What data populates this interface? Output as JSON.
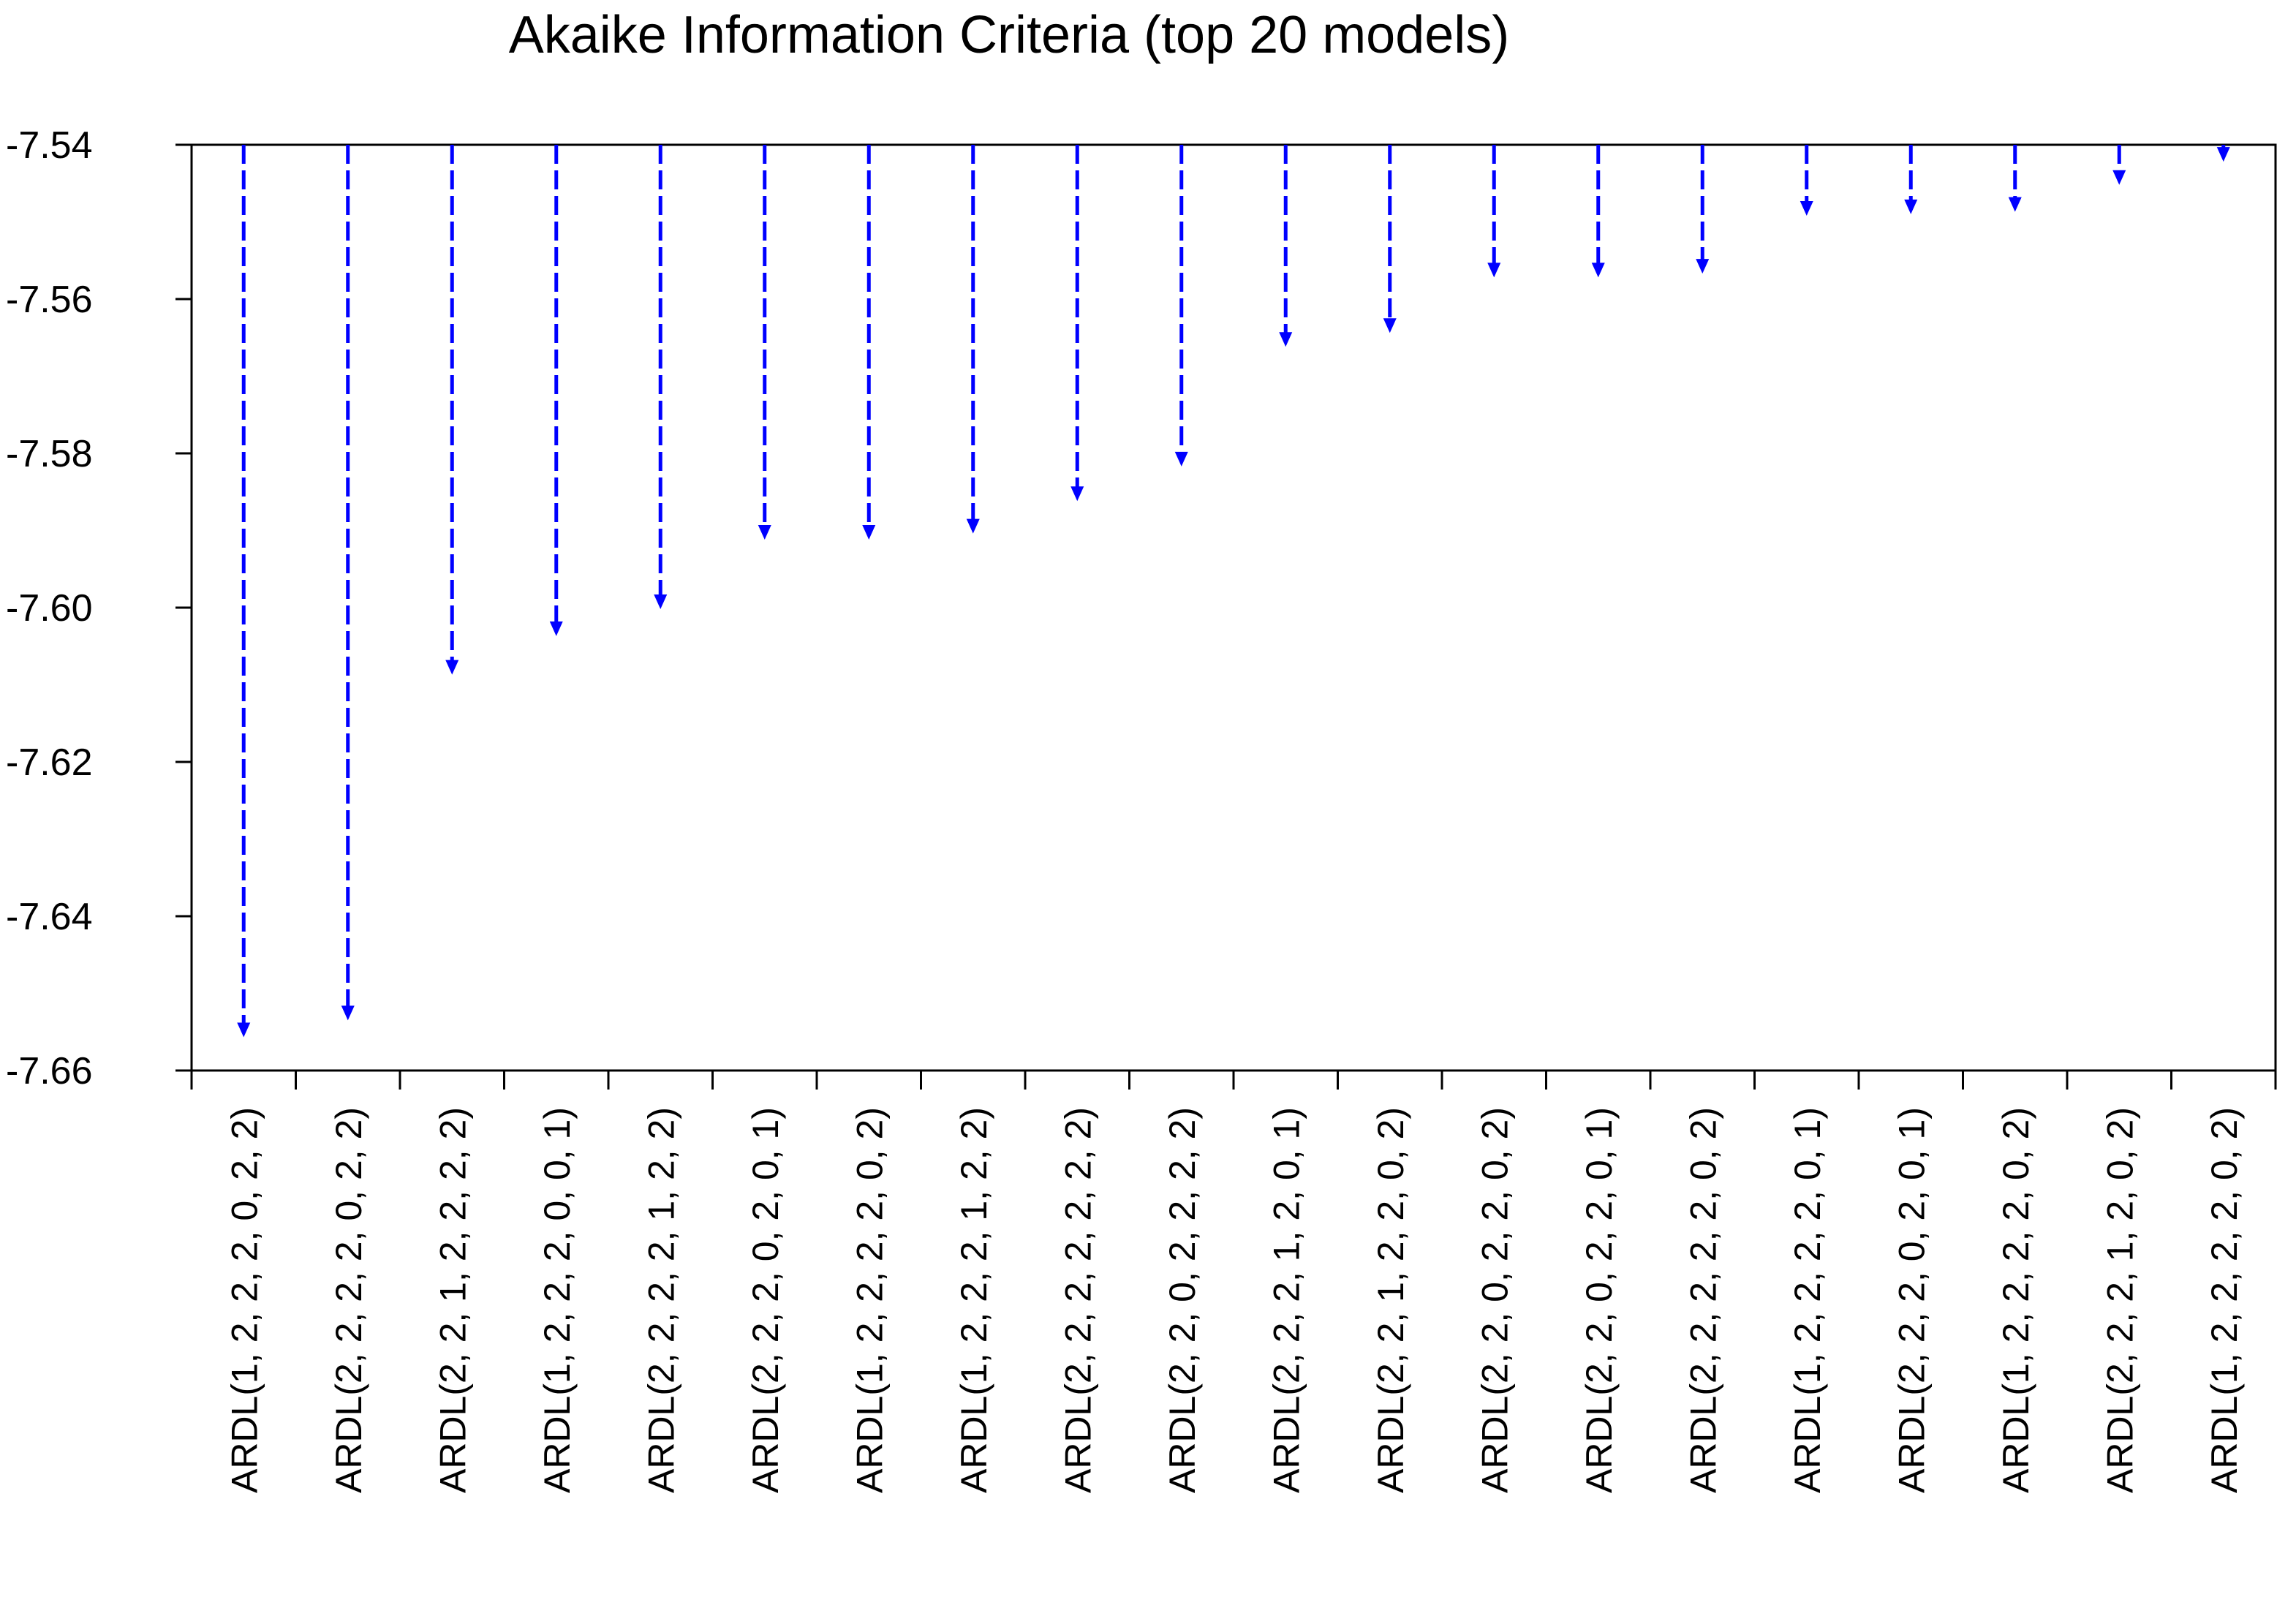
{
  "chart_data": {
    "type": "dropline",
    "title": "Akaike Information Criteria (top 20 models)",
    "ylim": [
      -7.66,
      -7.54
    ],
    "yticks": [
      "-7.54",
      "-7.56",
      "-7.58",
      "-7.60",
      "-7.62",
      "-7.64",
      "-7.66"
    ],
    "grid": false,
    "series_color": "#0000ff",
    "categories": [
      "ARDL(1, 2, 2, 2, 0, 2, 2)",
      "ARDL(2, 2, 2, 2, 0, 2, 2)",
      "ARDL(2, 2, 1, 2, 2, 2, 2)",
      "ARDL(1, 2, 2, 2, 0, 0, 1)",
      "ARDL(2, 2, 2, 2, 1, 2, 2)",
      "ARDL(2, 2, 2, 0, 2, 0, 1)",
      "ARDL(1, 2, 2, 2, 2, 0, 2)",
      "ARDL(1, 2, 2, 2, 1, 2, 2)",
      "ARDL(2, 2, 2, 2, 2, 2, 2)",
      "ARDL(2, 2, 0, 2, 2, 2, 2)",
      "ARDL(2, 2, 2, 1, 2, 0, 1)",
      "ARDL(2, 2, 1, 2, 2, 0, 2)",
      "ARDL(2, 2, 0, 2, 2, 0, 2)",
      "ARDL(2, 2, 0, 2, 2, 0, 1)",
      "ARDL(2, 2, 2, 2, 2, 0, 2)",
      "ARDL(1, 2, 2, 2, 2, 0, 1)",
      "ARDL(2, 2, 2, 0, 2, 0, 1)",
      "ARDL(1, 2, 2, 2, 2, 0, 2)",
      "ARDL(2, 2, 2, 1, 2, 0, 2)",
      "ARDL(1, 2, 2, 2, 2, 0, 2)"
    ],
    "values": [
      -7.6555,
      -7.6533,
      -7.6085,
      -7.6035,
      -7.6,
      -7.591,
      -7.591,
      -7.5902,
      -7.586,
      -7.5815,
      -7.566,
      -7.5642,
      -7.557,
      -7.557,
      -7.5565,
      -7.549,
      -7.5488,
      -7.5485,
      -7.545,
      -7.542
    ]
  }
}
